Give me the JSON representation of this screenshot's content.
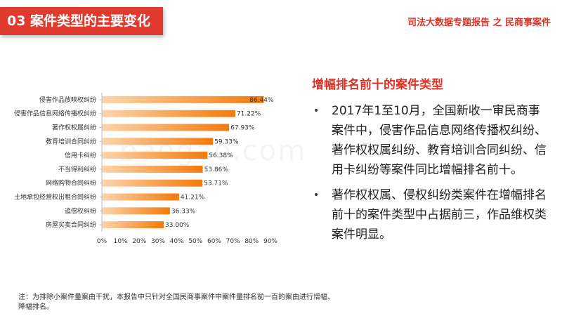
{
  "header": {
    "section_title": "03 案件类型的主要变化",
    "report_title": "司法大数据专题报告 之 民商事案件"
  },
  "watermark": "baogao.com",
  "chart_data": {
    "type": "bar",
    "orientation": "horizontal",
    "title": "",
    "xlabel": "",
    "ylabel": "",
    "xlim": [
      0,
      90
    ],
    "x_ticks": [
      "0%",
      "10%",
      "20%",
      "30%",
      "40%",
      "50%",
      "60%",
      "70%",
      "80%",
      "90%"
    ],
    "grid": false,
    "categories": [
      "侵害作品放映权纠纷",
      "侵害作品信息网络传播权纠纷",
      "著作权权属纠纷",
      "教育培训合同纠纷",
      "信用卡纠纷",
      "不当得利纠纷",
      "网络购物合同纠纷",
      "土地承包经营权出租合同纠纷",
      "追偿权纠纷",
      "房屋买卖合同纠纷"
    ],
    "values": [
      86.44,
      71.22,
      67.93,
      59.33,
      56.38,
      53.86,
      53.71,
      41.21,
      36.33,
      33.0
    ],
    "value_labels": [
      "86.44%",
      "71.22%",
      "67.93%",
      "59.33%",
      "56.38%",
      "53.86%",
      "53.71%",
      "41.21%",
      "36.33%",
      "33.00%"
    ],
    "bar_color_start": "#fdd5ac",
    "bar_color_end": "#f27a0c"
  },
  "right_panel": {
    "heading": "增幅排名前十的案件类型",
    "bullet_symbol": "•",
    "bullets": [
      "2017年1至10月，全国新收一审民商事案件中，侵害作品信息网络传播权纠纷、著作权权属纠纷、教育培训合同纠纷、信用卡纠纷等案件同比增幅排名前十。",
      "著作权权属、侵权纠纷类案件在增幅排名前十的案件类型中占据前三，作品维权类案件明显。"
    ]
  },
  "footnote": "注：为排除小案件量案由干扰，本报告中只针对全国民商事案件中案件量排名前一百的案由进行增幅、降幅排名。",
  "colors": {
    "accent_red": "#e03a2e",
    "heading_red": "#d8342a",
    "bar_orange": "#f27a0c"
  }
}
